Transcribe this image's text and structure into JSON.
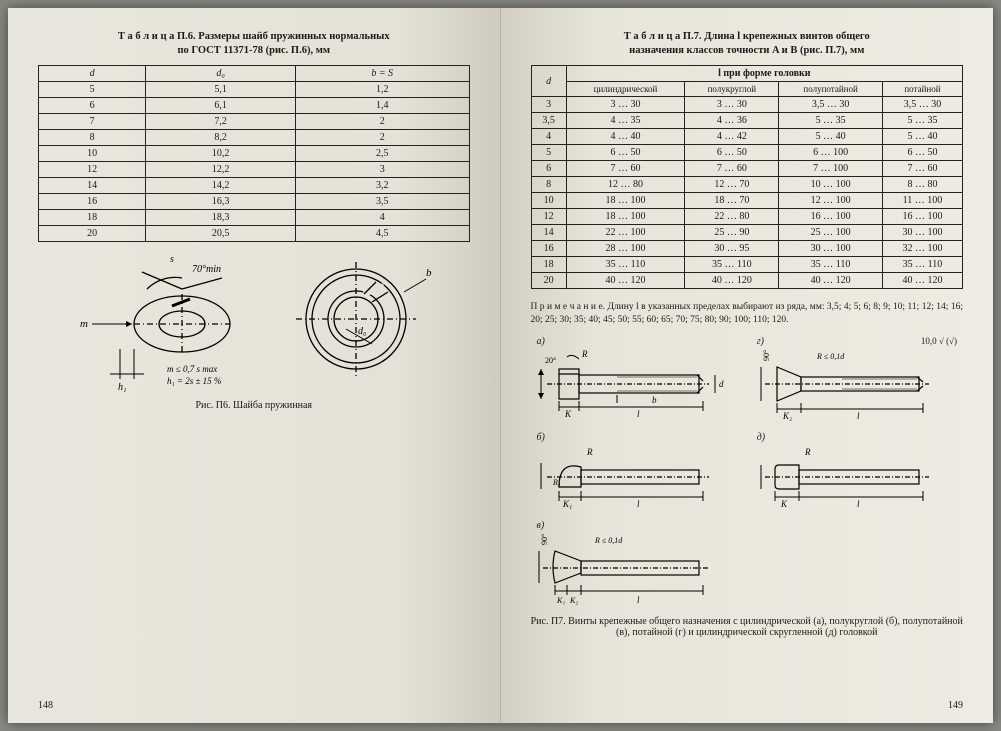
{
  "left": {
    "caption_line1": "Т а б л и ц а  П.6. Размеры шайб пружинных нормальных",
    "caption_line2": "по ГОСТ 11371-78 (рис. П.6), мм",
    "table": {
      "columns": [
        "d",
        "d₀",
        "b = S"
      ],
      "rows": [
        [
          "5",
          "5,1",
          "1,2"
        ],
        [
          "6",
          "6,1",
          "1,4"
        ],
        [
          "7",
          "7,2",
          "2"
        ],
        [
          "8",
          "8,2",
          "2"
        ],
        [
          "10",
          "10,2",
          "2,5"
        ],
        [
          "12",
          "12,2",
          "3"
        ],
        [
          "14",
          "14,2",
          "3,2"
        ],
        [
          "16",
          "16,3",
          "3,5"
        ],
        [
          "18",
          "18,3",
          "4"
        ],
        [
          "20",
          "20,5",
          "4,5"
        ]
      ]
    },
    "diagram": {
      "angle_label": "70°min",
      "m_label": "m",
      "s_label": "s",
      "h1_label": "h₁",
      "b_label": "b",
      "d0_label": "d₀",
      "note_m": "m ≤ 0,7 s max",
      "note_h": "h₁ = 2s ± 15 %"
    },
    "figure_caption": "Рис. П6. Шайба пружинная",
    "page_number": "148"
  },
  "right": {
    "caption_line1": "Т а б л и ц а  П.7. Длина l крепежных винтов общего",
    "caption_line2": "назначения классов точности A и B (рис. П.7), мм",
    "table": {
      "header_top": "l при форме головки",
      "header_d": "d",
      "header_cols": [
        "цилиндрической",
        "полукруглой",
        "полупотайной",
        "потайной"
      ],
      "rows": [
        [
          "3",
          "3 … 30",
          "3 … 30",
          "3,5 … 30",
          "3,5 … 30"
        ],
        [
          "3,5",
          "4 … 35",
          "4 … 36",
          "5 … 35",
          "5 … 35"
        ],
        [
          "4",
          "4 … 40",
          "4 … 42",
          "5 … 40",
          "5 … 40"
        ],
        [
          "5",
          "6 … 50",
          "6 … 50",
          "6 … 100",
          "6 … 50"
        ],
        [
          "6",
          "7 … 60",
          "7 … 60",
          "7 … 100",
          "7 … 60"
        ],
        [
          "8",
          "12 … 80",
          "12 … 70",
          "10 … 100",
          "8 … 80"
        ],
        [
          "10",
          "18 … 100",
          "18 … 70",
          "12 … 100",
          "11 … 100"
        ],
        [
          "12",
          "18 … 100",
          "22 … 80",
          "16 … 100",
          "16 … 100"
        ],
        [
          "14",
          "22 … 100",
          "25 … 90",
          "25 … 100",
          "30 … 100"
        ],
        [
          "16",
          "28 … 100",
          "30 … 95",
          "30 … 100",
          "32 … 100"
        ],
        [
          "18",
          "35 … 110",
          "35 … 110",
          "35 … 110",
          "35 … 110"
        ],
        [
          "20",
          "40 … 120",
          "40 … 120",
          "40 … 120",
          "40 … 120"
        ]
      ]
    },
    "note": "П р и м е ч а н и е. Длину l в указанных пределах выбирают из ряда, мм: 3,5; 4; 5; 6; 8; 9; 10; 11; 12; 14; 16; 20; 25; 30; 35; 40; 45; 50; 55; 60; 65; 70; 75; 80; 90; 100; 110; 120.",
    "diagram_labels": {
      "a": "а)",
      "b": "б)",
      "v": "в)",
      "g": "г)",
      "d": "д)",
      "R": "R",
      "R01d": "R ≤ 0,1d",
      "D": "D",
      "D1": "D₁",
      "d_thread": "d",
      "b_len": "b",
      "l": "l",
      "K": "K",
      "K1": "K₁",
      "K2": "K₂",
      "R1": "R₁",
      "angle20": "20°",
      "angle90": "90°",
      "sqrt": "√",
      "check": "(√)",
      "rough": "10,0"
    },
    "figure_caption": "Рис. П7. Винты крепежные общего назначения с цилиндрической (а), полукруглой (б), полупотайной (в), потайной (г) и цилиндрической скругленной (д) головкой",
    "page_number": "149"
  },
  "style": {
    "border_color": "#222222",
    "page_bg_left": "#e4e1d6",
    "page_bg_right": "#e7e4d9",
    "body_bg": "#898983",
    "font_size_caption": 10.5,
    "font_size_cell": 10,
    "font_size_note": 9.5
  }
}
